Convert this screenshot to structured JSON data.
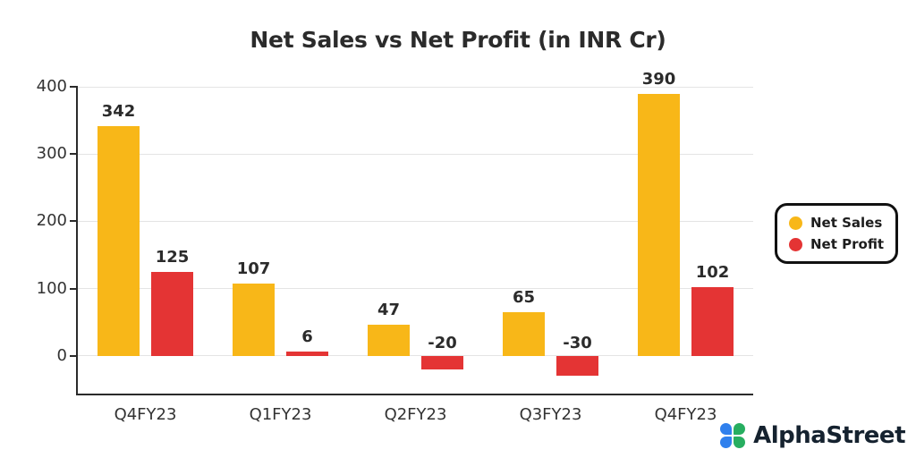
{
  "chart_data": {
    "type": "bar",
    "title": "Net Sales vs Net Profit (in INR Cr)",
    "categories": [
      "Q4FY23",
      "Q1FY23",
      "Q2FY23",
      "Q3FY23",
      "Q4FY23"
    ],
    "series": [
      {
        "name": "Net Sales",
        "color": "#F8B718",
        "values": [
          342,
          107,
          47,
          65,
          390
        ]
      },
      {
        "name": "Net Profit",
        "color": "#E43434",
        "values": [
          125,
          6,
          -20,
          -30,
          102
        ]
      }
    ],
    "yticks": [
      0,
      100,
      200,
      300,
      400
    ],
    "ylim": [
      -56,
      400
    ],
    "grid": true,
    "legend_position": "right",
    "xlabel": "",
    "ylabel": ""
  },
  "branding": {
    "name": "AlphaStreet",
    "icon_blue": "#2f80ed",
    "icon_green": "#27ae60"
  }
}
